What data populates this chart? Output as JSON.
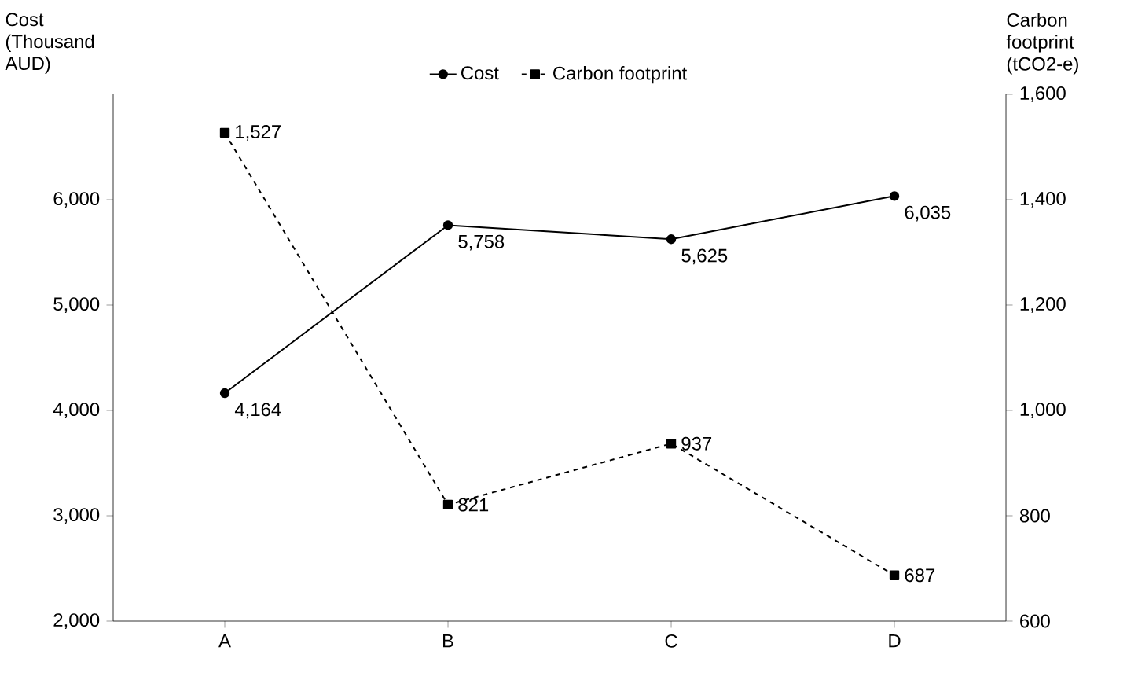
{
  "chart_data": {
    "type": "line",
    "categories": [
      "A",
      "B",
      "C",
      "D"
    ],
    "ylabel": "Cost (Thousand AUD)",
    "y2label": "Carbon footprint (tCO2-e)",
    "ylim": [
      2000,
      7000
    ],
    "yticks": [
      {
        "value": 2000,
        "label": "2,000"
      },
      {
        "value": 3000,
        "label": "3,000"
      },
      {
        "value": 4000,
        "label": "4,000"
      },
      {
        "value": 5000,
        "label": "5,000"
      },
      {
        "value": 6000,
        "label": "6,000"
      }
    ],
    "y2lim": [
      600,
      1600
    ],
    "y2ticks": [
      {
        "value": 600,
        "label": "600"
      },
      {
        "value": 800,
        "label": "800"
      },
      {
        "value": 1000,
        "label": "1,000"
      },
      {
        "value": 1200,
        "label": "1,200"
      },
      {
        "value": 1400,
        "label": "1,400"
      },
      {
        "value": 1600,
        "label": "1,600"
      }
    ],
    "series": [
      {
        "name": "Cost",
        "color": "#000000",
        "values": [
          4164,
          5758,
          5625,
          6035
        ],
        "value_labels": [
          "4,164",
          "5,758",
          "5,625",
          "6,035"
        ],
        "marker": "circle",
        "line_style": "solid"
      },
      {
        "name": "Carbon footprint",
        "color": "#000000",
        "values": [
          1527,
          821,
          937,
          687
        ],
        "value_labels": [
          "1,527",
          "821",
          "937",
          "687"
        ],
        "marker": "square",
        "line_style": "dashed",
        "axis": "y2"
      }
    ],
    "legend": "top",
    "grid": false
  }
}
